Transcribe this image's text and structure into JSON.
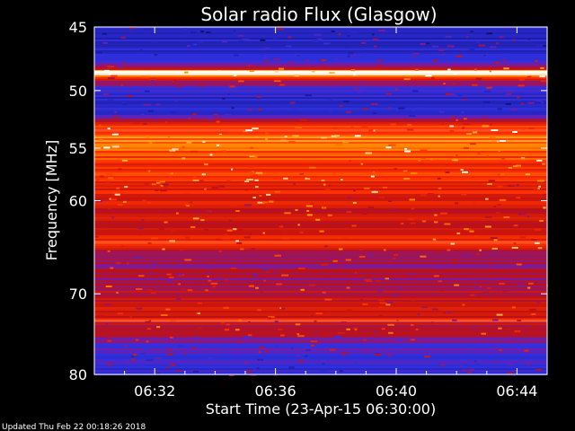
{
  "chart_data": {
    "type": "heatmap",
    "title": "Solar radio Flux (Glasgow)",
    "xlabel": "Start Time (23-Apr-15 06:30:00)",
    "ylabel": "Frequency [MHz]",
    "x_tick_labels": [
      "06:32",
      "06:36",
      "06:40",
      "06:44"
    ],
    "x_ticks_minutes": [
      2,
      6,
      10,
      14
    ],
    "xlim_minutes": [
      0,
      15
    ],
    "y_tick_labels": [
      "45",
      "50",
      "55",
      "60",
      "70",
      "80"
    ],
    "y_ticks": [
      45,
      50,
      55,
      60,
      70,
      80
    ],
    "ylim": [
      45,
      80
    ],
    "colormap": [
      "#000000",
      "#1a1aa0",
      "#3030e0",
      "#7a1aa0",
      "#c01010",
      "#ff3000",
      "#ff9000",
      "#ffffff"
    ],
    "intensity_profile": [
      {
        "mhz": 45,
        "level": 0.22
      },
      {
        "mhz": 46,
        "level": 0.2
      },
      {
        "mhz": 47,
        "level": 0.25
      },
      {
        "mhz": 48,
        "level": 0.45
      },
      {
        "mhz": 48.5,
        "level": 1.0
      },
      {
        "mhz": 49,
        "level": 0.55
      },
      {
        "mhz": 50,
        "level": 0.28
      },
      {
        "mhz": 51,
        "level": 0.22
      },
      {
        "mhz": 52,
        "level": 0.3
      },
      {
        "mhz": 53,
        "level": 0.72
      },
      {
        "mhz": 54,
        "level": 0.82
      },
      {
        "mhz": 55,
        "level": 0.78
      },
      {
        "mhz": 56,
        "level": 0.72
      },
      {
        "mhz": 58,
        "level": 0.66
      },
      {
        "mhz": 60,
        "level": 0.62
      },
      {
        "mhz": 62,
        "level": 0.58
      },
      {
        "mhz": 64,
        "level": 0.68
      },
      {
        "mhz": 66,
        "level": 0.48
      },
      {
        "mhz": 68,
        "level": 0.5
      },
      {
        "mhz": 70,
        "level": 0.55
      },
      {
        "mhz": 72,
        "level": 0.6
      },
      {
        "mhz": 74,
        "level": 0.56
      },
      {
        "mhz": 76,
        "level": 0.38
      },
      {
        "mhz": 78,
        "level": 0.3
      },
      {
        "mhz": 80,
        "level": 0.25
      }
    ],
    "bright_lines_mhz": [
      48.5,
      53.4,
      64.3,
      73.2
    ]
  },
  "footer": {
    "updated_text": "Updated Thu Feb 22 00:18:26 2018"
  }
}
